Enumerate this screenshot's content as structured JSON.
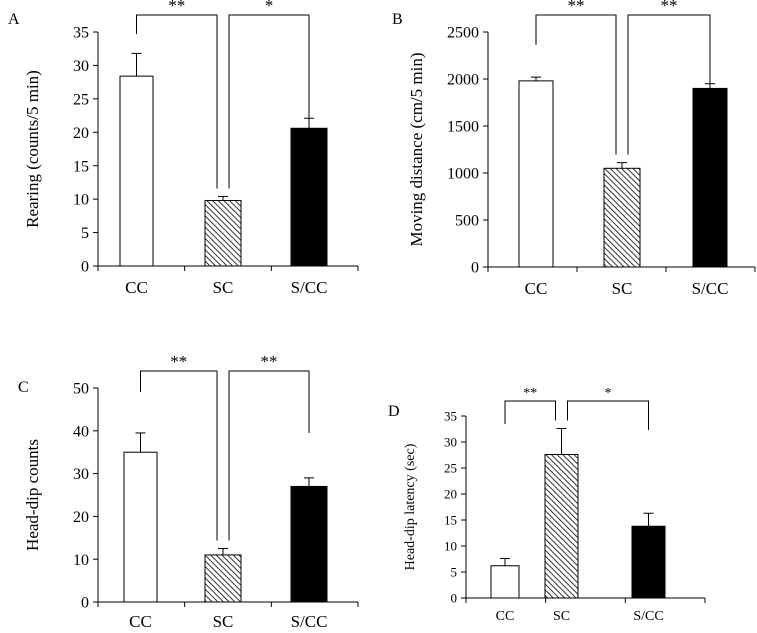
{
  "chart_data": [
    {
      "panel": "A",
      "type": "bar",
      "categories": [
        "CC",
        "SC",
        "S/CC"
      ],
      "values": [
        28.4,
        9.8,
        20.6
      ],
      "errors": [
        3.4,
        0.6,
        1.5
      ],
      "fills": [
        "white",
        "hatched",
        "black"
      ],
      "ylabel": "Rearing (counts/5 min)",
      "ylim": [
        0,
        35
      ],
      "yticks": [
        0,
        5,
        10,
        15,
        20,
        25,
        30,
        35
      ],
      "significance": [
        {
          "from": 0,
          "to": 1,
          "label": "**"
        },
        {
          "from": 1,
          "to": 2,
          "label": "*"
        }
      ]
    },
    {
      "panel": "B",
      "type": "bar",
      "categories": [
        "CC",
        "SC",
        "S/CC"
      ],
      "values": [
        1980,
        1050,
        1900
      ],
      "errors": [
        40,
        60,
        50
      ],
      "fills": [
        "white",
        "hatched",
        "black"
      ],
      "ylabel": "Moving distance (cm/5 min)",
      "ylim": [
        0,
        2500
      ],
      "yticks": [
        0,
        500,
        1000,
        1500,
        2000,
        2500
      ],
      "significance": [
        {
          "from": 0,
          "to": 1,
          "label": "**"
        },
        {
          "from": 1,
          "to": 2,
          "label": "**"
        }
      ]
    },
    {
      "panel": "C",
      "type": "bar",
      "categories": [
        "CC",
        "SC",
        "S/CC"
      ],
      "values": [
        35,
        11,
        27
      ],
      "errors": [
        4.5,
        1.5,
        2
      ],
      "fills": [
        "white",
        "hatched",
        "black"
      ],
      "ylabel": "Head-dip counts",
      "ylim": [
        0,
        50
      ],
      "yticks": [
        0,
        10,
        20,
        30,
        40,
        50
      ],
      "significance": [
        {
          "from": 0,
          "to": 1,
          "label": "**"
        },
        {
          "from": 1,
          "to": 2,
          "label": "**"
        }
      ]
    },
    {
      "panel": "D",
      "type": "bar",
      "categories": [
        "CC",
        "SC",
        "S/CC"
      ],
      "values": [
        6.2,
        27.6,
        13.8
      ],
      "errors": [
        1.4,
        5.0,
        2.5
      ],
      "fills": [
        "white",
        "hatched",
        "black"
      ],
      "ylabel": "Head-dip latency (sec)",
      "ylim": [
        0,
        35
      ],
      "yticks": [
        0,
        5,
        10,
        15,
        20,
        25,
        30,
        35
      ],
      "significance": [
        {
          "from": 0,
          "to": 1,
          "label": "**"
        },
        {
          "from": 1,
          "to": 2,
          "label": "*"
        }
      ]
    }
  ]
}
